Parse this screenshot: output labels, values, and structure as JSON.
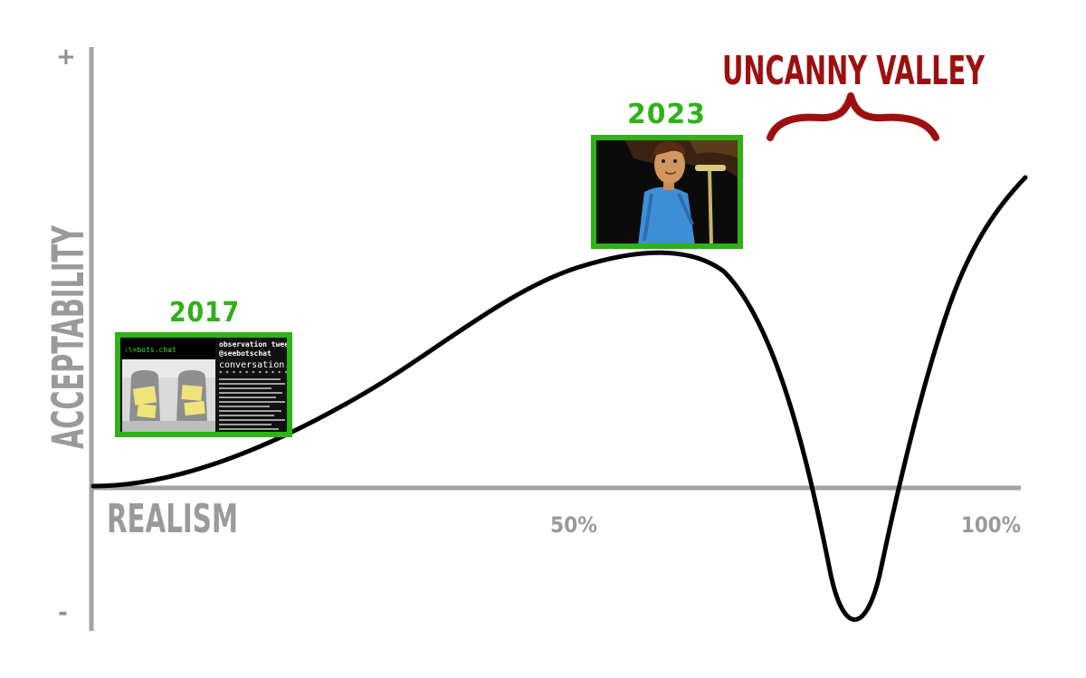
{
  "axes": {
    "y_title": "ACCEPTABILITY",
    "x_title": "REALISM",
    "y_plus": "+",
    "y_minus": "-",
    "x_tick_50": "50%",
    "x_tick_100": "100%"
  },
  "annotations": {
    "valley_title": "UNCANNY VALLEY",
    "year_2017": "2017",
    "year_2023": "2023"
  },
  "thumb_2017": {
    "prompt": ":\\>bots.chat",
    "header": "observation tweets",
    "handle": "@seebotschat",
    "log_file": "conversation.log",
    "stars": "* * * * * * * * * * * * * *"
  },
  "colors": {
    "axis": "#a3a3a3",
    "curve": "#000000",
    "year_green": "#2fb117",
    "valley_red": "#9d0f0f"
  },
  "icons": {
    "thumb_2017": "talking-speakers-terminal-image",
    "thumb_2023": "animated-man-at-microphone-image",
    "brace": "curly-brace-icon"
  }
}
